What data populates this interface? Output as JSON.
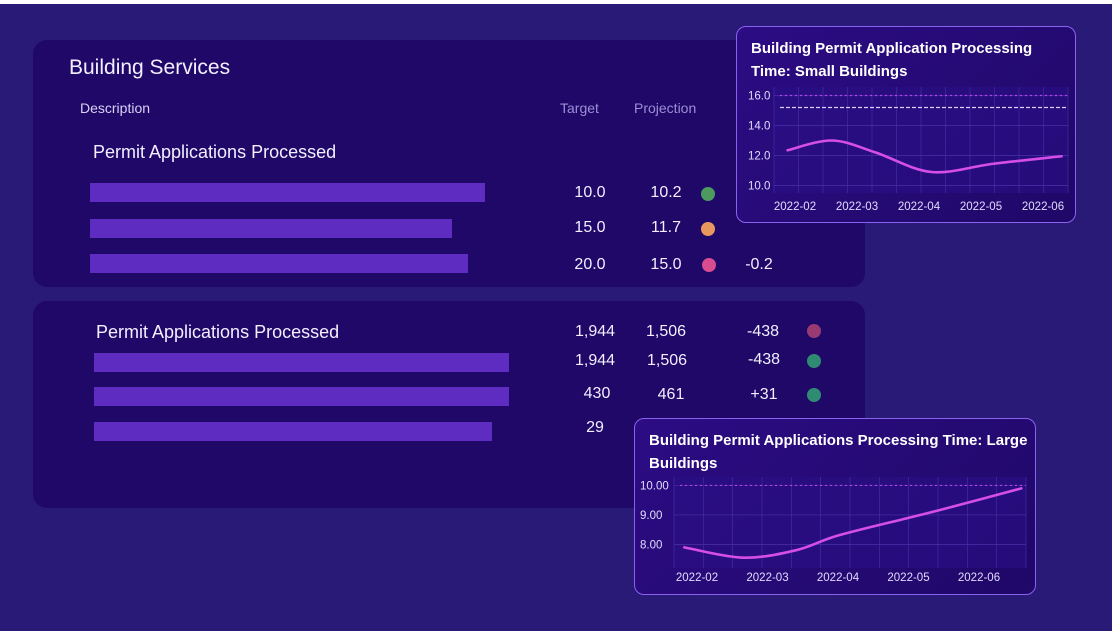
{
  "panel1": {
    "title": "Building Services",
    "col_description": "Description",
    "col_target": "Target",
    "col_projection": "Projection",
    "section": "Permit Applications Processed",
    "rows": [
      {
        "target": "10.0",
        "projection": "10.2",
        "status_color": "#4c9a5e"
      },
      {
        "target": "15.0",
        "projection": "11.7",
        "status_color": "#e8985c"
      },
      {
        "target": "20.0",
        "projection": "15.0",
        "status_color": "#d94c90",
        "variance": "-0.2"
      }
    ]
  },
  "panel2": {
    "section": "Permit Applications Processed",
    "header_row": {
      "target": "1,944",
      "projection": "1,506",
      "variance": "-438",
      "status_color": "#9a3a72"
    },
    "rows": [
      {
        "target": "1,944",
        "projection": "1,506",
        "variance": "-438",
        "status_color": "#2f8c72"
      },
      {
        "target": "430",
        "projection": "461",
        "variance": "+31",
        "status_color": "#2f8c72"
      },
      {
        "target": "29"
      }
    ]
  },
  "chart_data": [
    {
      "type": "line",
      "title": "Building Permit Application Processing Time: Small Buildings",
      "categories": [
        "2022-02",
        "2022-03",
        "2022-04",
        "2022-05",
        "2022-06"
      ],
      "yticks": [
        "16.0",
        "14.0",
        "12.0",
        "10.0"
      ],
      "ylim": [
        9.5,
        16.3
      ],
      "ytick_values": [
        16,
        14,
        12,
        10
      ],
      "reference_lines": [
        {
          "value": 16.0,
          "style": "dotted",
          "color": "#c040e8"
        },
        {
          "value": 15.2,
          "style": "dashed",
          "color": "#d8d0ff"
        }
      ],
      "series": [
        {
          "name": "Small Buildings",
          "color": "#d64ee8",
          "points": [
            [
              -0.12,
              12.35
            ],
            [
              0.6,
              13.0
            ],
            [
              1.3,
              12.2
            ],
            [
              2.2,
              10.9
            ],
            [
              3.2,
              11.45
            ],
            [
              4.3,
              11.95
            ]
          ]
        }
      ]
    },
    {
      "type": "line",
      "title": "Building Permit Applications Processing Time: Large Buildings",
      "categories": [
        "2022-02",
        "2022-03",
        "2022-04",
        "2022-05",
        "2022-06"
      ],
      "yticks": [
        "10.00",
        "9.00",
        "8.00"
      ],
      "ylim": [
        7.2,
        10.15
      ],
      "ytick_values": [
        10,
        9,
        8
      ],
      "reference_lines": [
        {
          "value": 10.0,
          "style": "dotted",
          "color": "#c040e8"
        }
      ],
      "series": [
        {
          "name": "Large Buildings",
          "color": "#d64ee8",
          "points": [
            [
              -0.18,
              7.9
            ],
            [
              0.65,
              7.55
            ],
            [
              1.4,
              7.8
            ],
            [
              2.0,
              8.3
            ],
            [
              3.0,
              8.9
            ],
            [
              3.5,
              9.2
            ],
            [
              4.6,
              9.9
            ]
          ]
        }
      ]
    }
  ]
}
